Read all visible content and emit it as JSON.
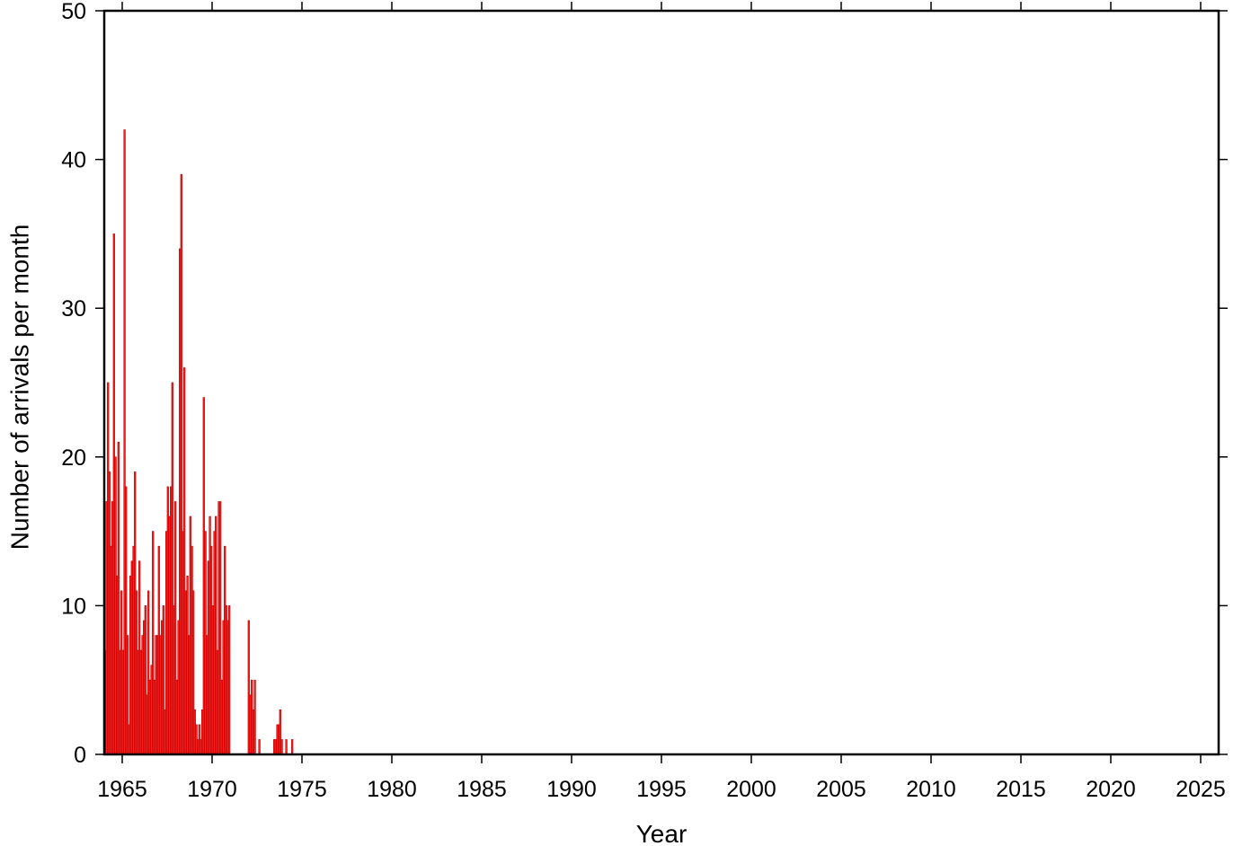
{
  "chart_data": {
    "type": "bar",
    "title": "",
    "xlabel": "Year",
    "ylabel": "Number of arrivals per month",
    "xlim": [
      1964.0,
      2026.0
    ],
    "ylim": [
      0,
      50
    ],
    "xticks": [
      1965,
      1970,
      1975,
      1980,
      1985,
      1990,
      1995,
      2000,
      2005,
      2010,
      2015,
      2020,
      2025
    ],
    "yticks": [
      0,
      10,
      20,
      30,
      40,
      50
    ],
    "bar_color": "#ff2020",
    "bar_edge_color": "#b40000",
    "grid": false,
    "bin": "month",
    "series": [
      {
        "x": [
          1964.04,
          1964.13,
          1964.21,
          1964.29,
          1964.38,
          1964.46,
          1964.54,
          1964.63,
          1964.71,
          1964.79,
          1964.88,
          1964.96,
          1965.04,
          1965.13,
          1965.21,
          1965.29,
          1965.38,
          1965.46,
          1965.54,
          1965.63,
          1965.71,
          1965.79,
          1965.88,
          1965.96,
          1966.04,
          1966.13,
          1966.21,
          1966.29,
          1966.38,
          1966.46,
          1966.54,
          1966.63,
          1966.71,
          1966.79,
          1966.88,
          1966.96,
          1967.04,
          1967.13,
          1967.21,
          1967.29,
          1967.38,
          1967.46,
          1967.54,
          1967.63,
          1967.71,
          1967.79,
          1967.88,
          1967.96,
          1968.04,
          1968.13,
          1968.21,
          1968.29,
          1968.38,
          1968.46,
          1968.54,
          1968.63,
          1968.71,
          1968.79,
          1968.88,
          1968.96,
          1969.04,
          1969.13,
          1969.21,
          1969.29,
          1969.38,
          1969.46,
          1969.54,
          1969.63,
          1969.71,
          1969.79,
          1969.88,
          1969.96,
          1970.04,
          1970.13,
          1970.21,
          1970.29,
          1970.38,
          1970.46,
          1970.54,
          1970.63,
          1970.71,
          1970.79,
          1970.88,
          1970.96,
          1971.04,
          1971.13,
          1971.21,
          1971.29,
          1972.04,
          1972.13,
          1972.21,
          1972.29,
          1972.38,
          1972.63,
          1973.46,
          1973.54,
          1973.63,
          1973.71,
          1973.79,
          1973.88,
          1974.13,
          1974.46
        ],
        "values": [
          7,
          17,
          25,
          19,
          14,
          17,
          35,
          20,
          12,
          21,
          7,
          11,
          7,
          42,
          18,
          8,
          2,
          12,
          13,
          14,
          19,
          11,
          7,
          13,
          7,
          8,
          9,
          10,
          4,
          11,
          5,
          6,
          15,
          5,
          8,
          8,
          14,
          8,
          9,
          10,
          3,
          15,
          18,
          16,
          18,
          25,
          10,
          17,
          5,
          9,
          34,
          39,
          15,
          26,
          11,
          12,
          8,
          16,
          14,
          11,
          3,
          2,
          1,
          2,
          1,
          3,
          24,
          15,
          8,
          13,
          16,
          14,
          10,
          15,
          16,
          7,
          17,
          17,
          5,
          9,
          14,
          10,
          9,
          10,
          0,
          0,
          0,
          0,
          9,
          4,
          5,
          3,
          5,
          1,
          1,
          1,
          2,
          2,
          3,
          1,
          1,
          1
        ]
      }
    ]
  }
}
